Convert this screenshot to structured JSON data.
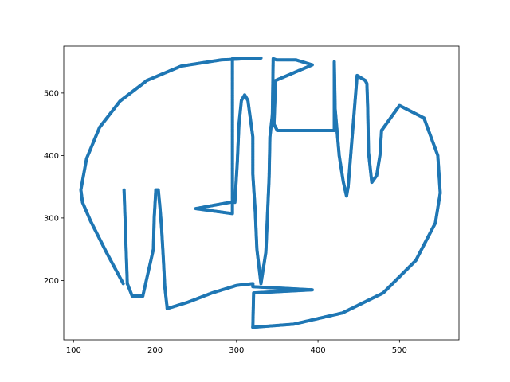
{
  "chart_data": {
    "type": "scatter",
    "title": "",
    "xlabel": "",
    "ylabel": "",
    "xlim": [
      88,
      573
    ],
    "ylim": [
      105,
      575
    ],
    "xticks": [
      100,
      200,
      300,
      400,
      500
    ],
    "yticks": [
      200,
      300,
      400,
      500
    ],
    "grid": false,
    "legend": "none",
    "series": [
      {
        "color": "#1f77b4",
        "marker_size": 4,
        "x": [
          161,
          140,
          121,
          111,
          109,
          116,
          132,
          157,
          190,
          232,
          281,
          330,
          330,
          322,
          316,
          310,
          305,
          301,
          298,
          295,
          295,
          250,
          296,
          298,
          301,
          303,
          306,
          310,
          314,
          320,
          320,
          323,
          325,
          330,
          336,
          338,
          340,
          341,
          344,
          344,
          345,
          349,
          373,
          393,
          348,
          346,
          346,
          350,
          380,
          408,
          420,
          420,
          421,
          426,
          431,
          435,
          437,
          437,
          448,
          458,
          460,
          461,
          462,
          466,
          472,
          476,
          478,
          478,
          500,
          530,
          547,
          550,
          544,
          520,
          480,
          430,
          370,
          320,
          320,
          321,
          393,
          320,
          320,
          320,
          300,
          270,
          240,
          215,
          215,
          215,
          212,
          210,
          208,
          206,
          204,
          201,
          199,
          198,
          198,
          185,
          185,
          183,
          178,
          172,
          166,
          166,
          162
        ],
        "y": [
          195,
          246,
          295,
          325,
          345,
          395,
          445,
          487,
          520,
          543,
          553,
          556,
          556,
          555,
          555,
          555,
          555,
          555,
          555,
          555,
          307,
          315,
          326,
          325,
          390,
          450,
          488,
          497,
          488,
          430,
          370,
          310,
          250,
          195,
          245,
          305,
          365,
          430,
          465,
          465,
          555,
          553,
          553,
          545,
          520,
          450,
          450,
          440,
          440,
          440,
          440,
          550,
          475,
          400,
          358,
          335,
          350,
          350,
          528,
          520,
          515,
          475,
          405,
          357,
          368,
          400,
          440,
          440,
          480,
          460,
          400,
          340,
          292,
          232,
          180,
          148,
          130,
          125,
          125,
          180,
          185,
          190,
          195,
          195,
          192,
          180,
          165,
          155,
          155,
          155,
          190,
          240,
          285,
          318,
          345,
          345,
          300,
          250,
          250,
          175,
          175,
          175,
          175,
          175,
          195,
          195,
          345
        ]
      }
    ]
  }
}
